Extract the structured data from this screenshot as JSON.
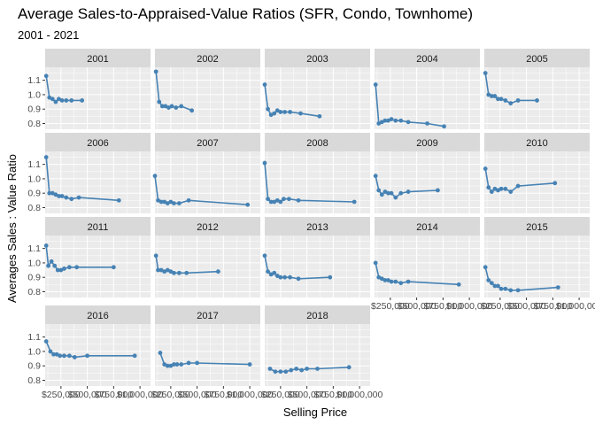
{
  "chart_data": {
    "type": "line",
    "title": "Average Sales-to-Appraised-Value Ratios (SFR, Condo, Townhome)",
    "subtitle": "2001 - 2021",
    "xlabel": "Selling Price",
    "ylabel": "Averages Sales : Value Ratio",
    "yticks": [
      "0.8",
      "0.9",
      "1.0",
      "1.1"
    ],
    "ylim": [
      0.76,
      1.19
    ],
    "xticks": [
      "$250,000",
      "$500,000",
      "$750,000",
      "$1,000,000"
    ],
    "xlim": [
      100000,
      1100000
    ],
    "grid": true,
    "facet_layout": "5 columns, wrapped",
    "colors": {
      "line": "#4682B4",
      "panel": "#EBEBEB",
      "strip": "#D9D9D9",
      "gridline": "#FFFFFF"
    },
    "panels": [
      {
        "label": "2001",
        "x": [
          110000,
          140000,
          170000,
          200000,
          230000,
          260000,
          300000,
          350000,
          450000
        ],
        "y": [
          1.13,
          0.98,
          0.97,
          0.95,
          0.97,
          0.96,
          0.96,
          0.96,
          0.96
        ]
      },
      {
        "label": "2002",
        "x": [
          110000,
          140000,
          170000,
          200000,
          230000,
          260000,
          300000,
          350000,
          450000
        ],
        "y": [
          1.16,
          0.95,
          0.92,
          0.92,
          0.91,
          0.92,
          0.91,
          0.92,
          0.89
        ]
      },
      {
        "label": "2003",
        "x": [
          100000,
          130000,
          160000,
          190000,
          220000,
          250000,
          290000,
          340000,
          440000,
          620000
        ],
        "y": [
          1.07,
          0.9,
          0.86,
          0.87,
          0.89,
          0.88,
          0.88,
          0.88,
          0.87,
          0.85
        ]
      },
      {
        "label": "2004",
        "x": [
          110000,
          140000,
          170000,
          200000,
          230000,
          260000,
          300000,
          350000,
          420000,
          600000,
          760000
        ],
        "y": [
          1.07,
          0.8,
          0.81,
          0.82,
          0.82,
          0.83,
          0.82,
          0.82,
          0.81,
          0.8,
          0.78
        ]
      },
      {
        "label": "2005",
        "x": [
          110000,
          140000,
          170000,
          200000,
          230000,
          260000,
          300000,
          350000,
          420000,
          600000
        ],
        "y": [
          1.15,
          1.0,
          0.99,
          0.99,
          0.97,
          0.97,
          0.96,
          0.94,
          0.96,
          0.96
        ]
      },
      {
        "label": "2006",
        "x": [
          110000,
          140000,
          170000,
          200000,
          230000,
          260000,
          300000,
          350000,
          420000,
          800000
        ],
        "y": [
          1.15,
          0.9,
          0.9,
          0.89,
          0.88,
          0.88,
          0.87,
          0.86,
          0.87,
          0.85
        ]
      },
      {
        "label": "2007",
        "x": [
          100000,
          130000,
          160000,
          190000,
          220000,
          250000,
          280000,
          330000,
          420000,
          980000
        ],
        "y": [
          1.02,
          0.85,
          0.84,
          0.84,
          0.83,
          0.84,
          0.83,
          0.83,
          0.85,
          0.82
        ]
      },
      {
        "label": "2008",
        "x": [
          100000,
          130000,
          160000,
          190000,
          220000,
          250000,
          280000,
          330000,
          420000,
          950000
        ],
        "y": [
          1.11,
          0.86,
          0.84,
          0.84,
          0.85,
          0.84,
          0.86,
          0.86,
          0.85,
          0.84
        ]
      },
      {
        "label": "2009",
        "x": [
          110000,
          140000,
          170000,
          200000,
          230000,
          260000,
          300000,
          350000,
          420000,
          700000
        ],
        "y": [
          1.02,
          0.92,
          0.89,
          0.91,
          0.9,
          0.9,
          0.87,
          0.9,
          0.91,
          0.92
        ]
      },
      {
        "label": "2010",
        "x": [
          110000,
          140000,
          170000,
          200000,
          230000,
          260000,
          300000,
          350000,
          420000,
          770000
        ],
        "y": [
          1.07,
          0.94,
          0.91,
          0.93,
          0.92,
          0.93,
          0.93,
          0.91,
          0.95,
          0.97
        ]
      },
      {
        "label": "2011",
        "x": [
          110000,
          130000,
          160000,
          190000,
          220000,
          250000,
          280000,
          330000,
          400000,
          750000
        ],
        "y": [
          1.12,
          0.98,
          1.01,
          0.98,
          0.95,
          0.95,
          0.96,
          0.97,
          0.97,
          0.97
        ]
      },
      {
        "label": "2012",
        "x": [
          110000,
          130000,
          160000,
          190000,
          220000,
          250000,
          280000,
          330000,
          400000,
          700000
        ],
        "y": [
          1.05,
          0.95,
          0.95,
          0.94,
          0.95,
          0.94,
          0.93,
          0.93,
          0.93,
          0.94
        ]
      },
      {
        "label": "2013",
        "x": [
          100000,
          130000,
          160000,
          190000,
          220000,
          250000,
          290000,
          340000,
          420000,
          720000
        ],
        "y": [
          1.05,
          0.94,
          0.92,
          0.93,
          0.91,
          0.9,
          0.9,
          0.9,
          0.89,
          0.9
        ]
      },
      {
        "label": "2014",
        "x": [
          110000,
          140000,
          170000,
          200000,
          230000,
          260000,
          300000,
          350000,
          420000,
          900000
        ],
        "y": [
          1.0,
          0.9,
          0.89,
          0.88,
          0.88,
          0.87,
          0.87,
          0.86,
          0.87,
          0.85
        ]
      },
      {
        "label": "2015",
        "x": [
          110000,
          140000,
          170000,
          200000,
          230000,
          260000,
          300000,
          350000,
          420000,
          800000
        ],
        "y": [
          0.97,
          0.88,
          0.86,
          0.84,
          0.84,
          0.82,
          0.82,
          0.81,
          0.81,
          0.83
        ]
      },
      {
        "label": "2016",
        "x": [
          110000,
          150000,
          180000,
          210000,
          240000,
          280000,
          330000,
          380000,
          500000,
          950000
        ],
        "y": [
          1.07,
          1.0,
          0.98,
          0.98,
          0.97,
          0.97,
          0.97,
          0.96,
          0.97,
          0.97
        ]
      },
      {
        "label": "2017",
        "x": [
          150000,
          190000,
          220000,
          250000,
          280000,
          310000,
          350000,
          420000,
          500000,
          1000000
        ],
        "y": [
          0.99,
          0.91,
          0.9,
          0.9,
          0.91,
          0.91,
          0.91,
          0.92,
          0.92,
          0.91
        ]
      },
      {
        "label": "2018",
        "x": [
          150000,
          200000,
          250000,
          300000,
          350000,
          400000,
          450000,
          500000,
          600000,
          900000
        ],
        "y": [
          0.88,
          0.86,
          0.86,
          0.86,
          0.87,
          0.88,
          0.87,
          0.88,
          0.88,
          0.89
        ]
      }
    ]
  }
}
